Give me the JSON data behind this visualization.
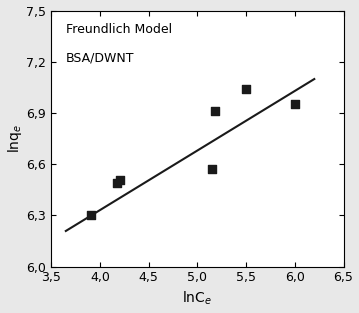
{
  "scatter_x": [
    3.91,
    4.18,
    4.21,
    5.15,
    5.18,
    5.5,
    6.0
  ],
  "scatter_y": [
    6.3,
    6.49,
    6.51,
    6.57,
    6.91,
    7.04,
    6.95
  ],
  "line_x": [
    3.65,
    6.2
  ],
  "line_slope": 0.349,
  "line_intercept": 4.935,
  "xlabel": "lnC$_e$",
  "ylabel": "lnq$_e$",
  "annotation_line1": "Freundlich Model",
  "annotation_line2": "BSA/DWNT",
  "xlim": [
    3.5,
    6.5
  ],
  "ylim": [
    6.0,
    7.5
  ],
  "xticks": [
    3.5,
    4.0,
    4.5,
    5.0,
    5.5,
    6.0,
    6.5
  ],
  "yticks": [
    6.0,
    6.3,
    6.6,
    6.9,
    7.2,
    7.5
  ],
  "marker_color": "#1a1a1a",
  "line_color": "#1a1a1a",
  "bg_color": "#e8e8e8",
  "axes_bg_color": "#ffffff",
  "font_size": 9,
  "annotation_fontsize": 9
}
